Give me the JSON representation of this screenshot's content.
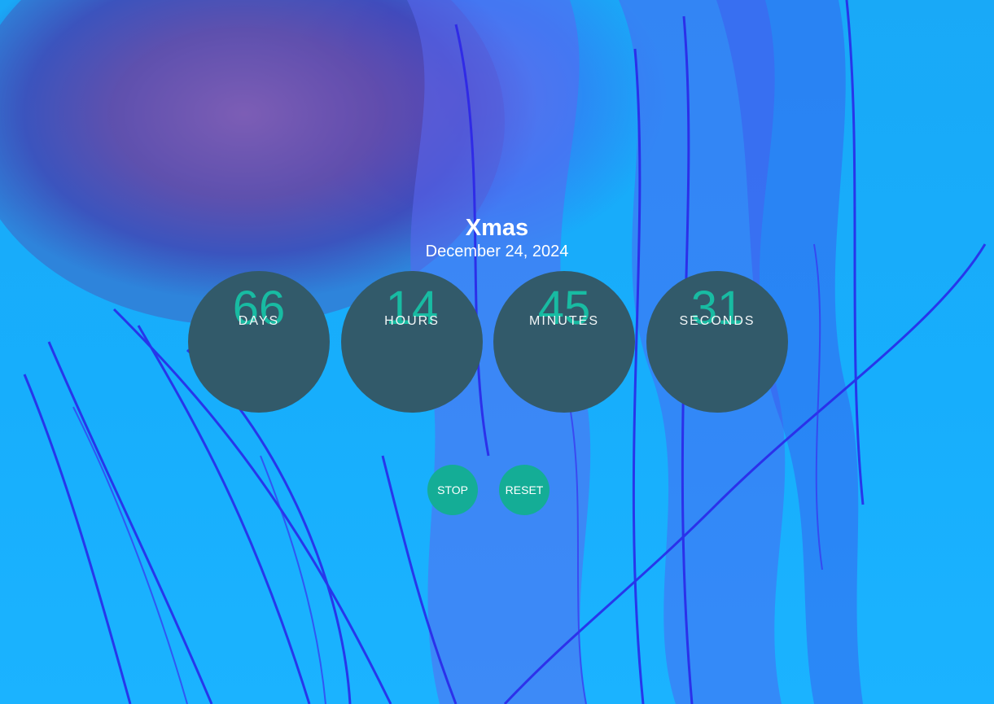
{
  "event": {
    "title": "Xmas",
    "date": "December 24, 2024"
  },
  "countdown": [
    {
      "value": "66",
      "label": "DAYS"
    },
    {
      "value": "14",
      "label": "HOURS"
    },
    {
      "value": "45",
      "label": "MINUTES"
    },
    {
      "value": "31",
      "label": "SECONDS"
    }
  ],
  "controls": {
    "stop_label": "STOP",
    "reset_label": "RESET"
  },
  "colors": {
    "circle_bg": "#325a6a",
    "number": "#17c1a6",
    "button_bg": "#14ad96",
    "text": "#ffffff"
  }
}
